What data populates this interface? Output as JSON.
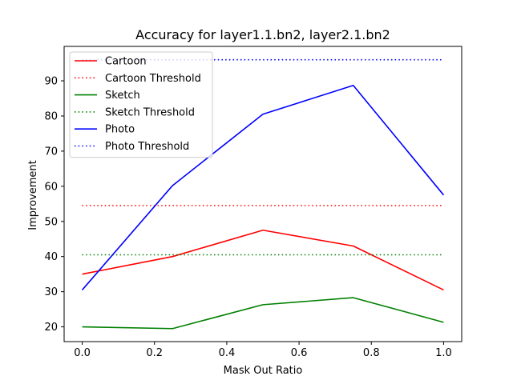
{
  "chart_data": {
    "type": "line",
    "title": "Accuracy for layer1.1.bn2, layer2.1.bn2",
    "xlabel": "Mask Out Ratio",
    "ylabel": "Improvement",
    "xlim": [
      -0.05,
      1.05
    ],
    "ylim": [
      15.8,
      99.8
    ],
    "x_ticks": [
      0.0,
      0.2,
      0.4,
      0.6,
      0.8,
      1.0
    ],
    "x_tick_labels": [
      "0.0",
      "0.2",
      "0.4",
      "0.6",
      "0.8",
      "1.0"
    ],
    "y_ticks": [
      20,
      30,
      40,
      50,
      60,
      70,
      80,
      90
    ],
    "y_tick_labels": [
      "20",
      "30",
      "40",
      "50",
      "60",
      "70",
      "80",
      "90"
    ],
    "grid": false,
    "legend_position": "top-left",
    "x": [
      0.0,
      0.25,
      0.5,
      0.75,
      1.0
    ],
    "series": [
      {
        "name": "Cartoon",
        "values": [
          35.0,
          40.0,
          47.5,
          43.0,
          30.5
        ],
        "color": "#ff0000",
        "style": "solid"
      },
      {
        "name": "Cartoon Threshold",
        "values": [
          54.5,
          54.5,
          54.5,
          54.5,
          54.5
        ],
        "color": "#ff0000",
        "style": "dotted"
      },
      {
        "name": "Sketch",
        "values": [
          20.0,
          19.5,
          26.3,
          28.3,
          21.3
        ],
        "color": "#008000",
        "style": "solid"
      },
      {
        "name": "Sketch Threshold",
        "values": [
          40.5,
          40.5,
          40.5,
          40.5,
          40.5
        ],
        "color": "#008000",
        "style": "dotted"
      },
      {
        "name": "Photo",
        "values": [
          30.5,
          60.2,
          80.5,
          88.7,
          57.5
        ],
        "color": "#0000ff",
        "style": "solid"
      },
      {
        "name": "Photo Threshold",
        "values": [
          96.0,
          96.0,
          96.0,
          96.0,
          96.0
        ],
        "color": "#0000ff",
        "style": "dotted"
      }
    ]
  }
}
